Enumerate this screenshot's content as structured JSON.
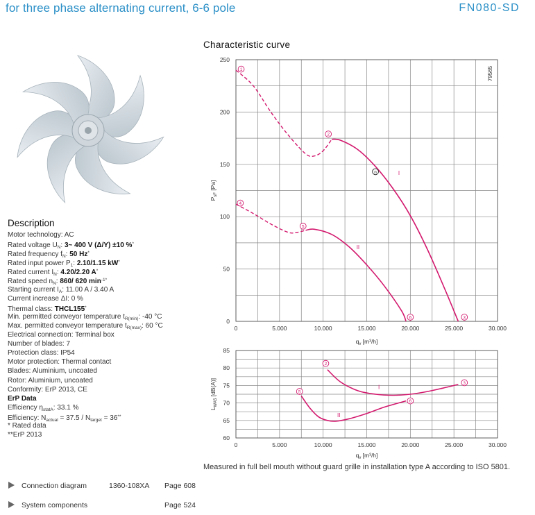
{
  "header": {
    "title": "for three phase alternating current, 6-6 pole",
    "model": "FN080-SD"
  },
  "chart_section_title": "Characteristic curve",
  "description": {
    "title": "Description",
    "lines": [
      {
        "label": "Motor technology: ",
        "value": "AC"
      },
      {
        "label": "Rated voltage U",
        "sub": "N",
        "sep": ": ",
        "value": "3~ 400 V (Δ/Y) ±10 %",
        "sup": "*",
        "bold": true
      },
      {
        "label": "Rated frequency f",
        "sub": "N",
        "sep": ": ",
        "value": "50 Hz",
        "sup": "*",
        "bold": true
      },
      {
        "label": "Rated input power P",
        "sub": "1",
        "sep": ": ",
        "value": "2.10/1.15 kW",
        "sup": "*",
        "bold": true
      },
      {
        "label": "Rated current I",
        "sub": "N",
        "sep": ": ",
        "value": "4.20/2.20 A",
        "sup": "*",
        "bold": true
      },
      {
        "label": "Rated speed n",
        "sub": "N",
        "sep": ": ",
        "value": "860/ 620 min",
        "sup": "-1*",
        "bold": true
      },
      {
        "label": "Starting current I",
        "sub": "A",
        "sep": ": ",
        "value": "11.00 A / 3.40 A"
      },
      {
        "label": "Current increase ΔI: ",
        "value": "0 %"
      },
      {
        "label": "Thermal class: ",
        "value": "THCL155",
        "sup": "*",
        "bold": true
      },
      {
        "label": "Min. permitted conveyor temperature t",
        "sub": "R(min)",
        "sep": ": ",
        "value": "-40 °C"
      },
      {
        "label": "Max. permitted conveyor temperature t",
        "sub": "R(max)",
        "sep": ": ",
        "value": "60 °C"
      },
      {
        "label": "Electrical connection: ",
        "value": "Terminal box"
      },
      {
        "label": "Number of blades: ",
        "value": "7"
      },
      {
        "label": "Protection class: ",
        "value": "IP54"
      },
      {
        "label": "Motor protection: ",
        "value": "Thermal contact"
      },
      {
        "label": "Blades: ",
        "value": "Aluminium, uncoated"
      },
      {
        "label": "Rotor: ",
        "value": "Aluminium, uncoated"
      },
      {
        "label": "Conformity: ",
        "value": "ErP 2013, CE"
      }
    ],
    "erp_title": "ErP Data",
    "erp_lines": [
      {
        "label": "Efficiency η",
        "sub": "statA",
        "sep": ": ",
        "value": "33.1 %"
      },
      {
        "label": "Efficiency: N",
        "sub": "actual",
        "sep": " = ",
        "value": "37.5 / N",
        "sub2": "target",
        "value2": " = 36",
        "sup": "**"
      }
    ],
    "notes": [
      "* Rated data",
      "**ErP 2013"
    ]
  },
  "links": [
    {
      "label": "Connection diagram",
      "code": "1360-108XA",
      "page": "Page 608"
    },
    {
      "label": "System components",
      "code": "",
      "page": "Page 524"
    }
  ],
  "footnote": "Measured in full bell mouth without guard grille in installation type A according to ISO 5801.",
  "chart_data": [
    {
      "type": "line",
      "id": "pressure",
      "ylabel": "P",
      "ylabel_sub": "sF",
      "ylabel_unit": " [Pa]",
      "xlabel": "q",
      "xlabel_sub": "v",
      "xlabel_unit": " [m³/h]",
      "xlim": [
        0,
        30000
      ],
      "ylim": [
        0,
        250
      ],
      "x_ticks": [
        0,
        5000,
        10000,
        15000,
        20000,
        25000,
        30000
      ],
      "x_tick_labels": [
        "0",
        "5.000",
        "10.000",
        "15.000",
        "20.000",
        "25.000",
        "30.000"
      ],
      "y_ticks": [
        0,
        50,
        100,
        150,
        200,
        250
      ],
      "y_tick_labels": [
        "0",
        "50",
        "100",
        "150",
        "200",
        "250"
      ],
      "grid": true,
      "code_label": "79565",
      "series": [
        {
          "name": "I",
          "dashed_x": [
            0,
            2000,
            4000,
            6000,
            8000,
            9000,
            10000,
            11000
          ],
          "dashed_y": [
            240,
            225,
            200,
            178,
            160,
            158,
            163,
            174
          ],
          "x": [
            11000,
            12000,
            14000,
            16000,
            18000,
            20000,
            22000,
            24000,
            25500
          ],
          "y": [
            174,
            173,
            164,
            148,
            127,
            101,
            68,
            30,
            0
          ]
        },
        {
          "name": "II",
          "dashed_x": [
            0,
            2000,
            4000,
            6000,
            7000,
            8000
          ],
          "dashed_y": [
            112,
            103,
            93,
            85,
            85,
            87
          ],
          "x": [
            8000,
            9000,
            11000,
            13000,
            15000,
            17000,
            19000,
            19500
          ],
          "y": [
            87,
            88,
            83,
            71,
            54,
            34,
            10,
            0
          ]
        }
      ],
      "markers": [
        {
          "label": "1",
          "x": 600,
          "y": 241
        },
        {
          "label": "2",
          "x": 10600,
          "y": 179
        },
        {
          "label": "n",
          "x": 16000,
          "y": 143
        },
        {
          "label": "4",
          "x": 500,
          "y": 113
        },
        {
          "label": "5",
          "x": 7700,
          "y": 91
        },
        {
          "label": "6",
          "x": 20000,
          "y": 4
        },
        {
          "label": "3",
          "x": 26200,
          "y": 4
        }
      ],
      "curve_labels": [
        {
          "label": "I",
          "x": 18700,
          "y": 140
        },
        {
          "label": "II",
          "x": 14000,
          "y": 69
        }
      ]
    },
    {
      "type": "line",
      "id": "sound",
      "ylabel": "L",
      "ylabel_sub": "WA5",
      "ylabel_unit": " [dB(A)]",
      "xlabel": "q",
      "xlabel_sub": "v",
      "xlabel_unit": " [m³/h]",
      "xlim": [
        0,
        30000
      ],
      "ylim": [
        60,
        85
      ],
      "x_ticks": [
        0,
        5000,
        10000,
        15000,
        20000,
        25000,
        30000
      ],
      "x_tick_labels": [
        "0",
        "5.000",
        "10.000",
        "15.000",
        "20.000",
        "25.000",
        "30.000"
      ],
      "y_ticks": [
        60,
        65,
        70,
        75,
        80,
        85
      ],
      "y_tick_labels": [
        "60",
        "65",
        "70",
        "75",
        "80",
        "85"
      ],
      "grid": true,
      "series": [
        {
          "name": "I",
          "x": [
            10500,
            12000,
            14000,
            16000,
            18000,
            20000,
            22000,
            24000,
            25500
          ],
          "y": [
            79.5,
            76,
            73.5,
            72.5,
            72.2,
            72.5,
            73.3,
            74.4,
            75.3
          ]
        },
        {
          "name": "II",
          "x": [
            7500,
            8500,
            9500,
            10500,
            11500,
            13000,
            15000,
            17000,
            19500
          ],
          "y": [
            72,
            68.5,
            66,
            65,
            64.8,
            65.5,
            67,
            68.8,
            70.6
          ]
        }
      ],
      "markers": [
        {
          "label": "2",
          "x": 10300,
          "y": 81.3
        },
        {
          "label": "5",
          "x": 7300,
          "y": 73.3
        },
        {
          "label": "6",
          "x": 20000,
          "y": 70.6
        },
        {
          "label": "3",
          "x": 26200,
          "y": 75.8
        }
      ],
      "curve_labels": [
        {
          "label": "I",
          "x": 16400,
          "y": 74
        },
        {
          "label": "II",
          "x": 11800,
          "y": 66
        }
      ]
    }
  ],
  "colors": {
    "curve": "#d3196e",
    "grid": "#888888",
    "accent": "#2a8fc7"
  }
}
